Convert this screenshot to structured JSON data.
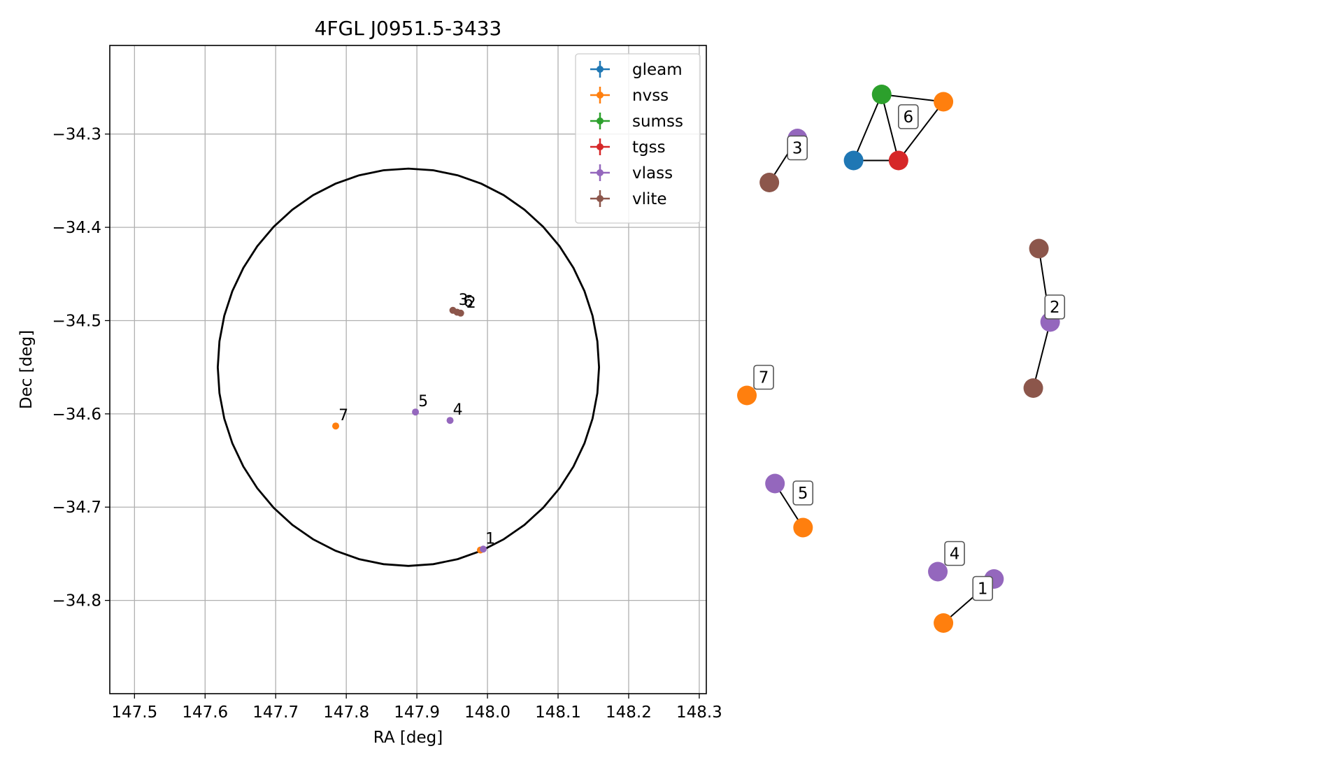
{
  "chart_data": [
    {
      "type": "scatter",
      "title": "4FGL J0951.5-3433",
      "xlabel": "RA [deg]",
      "ylabel": "Dec [deg]",
      "xlim": [
        147.465,
        148.31
      ],
      "ylim": [
        -34.9,
        -34.205
      ],
      "x_ticks": [
        147.5,
        147.6,
        147.7,
        147.8,
        147.9,
        148.0,
        148.1,
        148.2,
        148.3
      ],
      "x_tick_labels": [
        "147.5",
        "147.6",
        "147.7",
        "147.8",
        "147.9",
        "148.0",
        "148.1",
        "148.2",
        "148.3"
      ],
      "y_ticks": [
        -34.3,
        -34.4,
        -34.5,
        -34.6,
        -34.7,
        -34.8
      ],
      "y_tick_labels": [
        "−34.3",
        "−34.4",
        "−34.5",
        "−34.6",
        "−34.7",
        "−34.8"
      ],
      "grid": true,
      "legend_position": "top-right",
      "series": [
        {
          "name": "gleam",
          "color": "#1f77b4",
          "points": []
        },
        {
          "name": "nvss",
          "color": "#ff7f0e",
          "points": [
            [
              147.785,
              -34.613
            ],
            [
              147.99,
              -34.746
            ]
          ]
        },
        {
          "name": "sumss",
          "color": "#2ca02c",
          "points": []
        },
        {
          "name": "tgss",
          "color": "#d62728",
          "points": []
        },
        {
          "name": "vlass",
          "color": "#9467bd",
          "points": [
            [
              147.898,
              -34.598
            ],
            [
              147.947,
              -34.607
            ],
            [
              147.994,
              -34.745
            ]
          ]
        },
        {
          "name": "vlite",
          "color": "#8c564b",
          "points": [
            [
              147.951,
              -34.489
            ],
            [
              147.957,
              -34.491
            ],
            [
              147.962,
              -34.492
            ]
          ]
        }
      ],
      "circle": {
        "center": [
          147.888,
          -34.55
        ],
        "ra_radius": 0.27,
        "dec_radius": 0.213
      },
      "point_labels": [
        {
          "text": "1",
          "x": 147.997,
          "y": -34.739
        },
        {
          "text": "3",
          "x": 147.959,
          "y": -34.483
        },
        {
          "text": "6",
          "x": 147.966,
          "y": -34.485
        },
        {
          "text": "2",
          "x": 147.97,
          "y": -34.486
        },
        {
          "text": "4",
          "x": 147.951,
          "y": -34.601
        },
        {
          "text": "5",
          "x": 147.902,
          "y": -34.592
        },
        {
          "text": "7",
          "x": 147.789,
          "y": -34.607
        }
      ]
    },
    {
      "type": "graph",
      "groups": [
        {
          "label": "6",
          "nodes": [
            {
              "color": "#2ca02c",
              "x": 0.25,
              "y": 0.1
            },
            {
              "color": "#ff7f0e",
              "x": 0.36,
              "y": 0.11
            },
            {
              "color": "#1f77b4",
              "x": 0.2,
              "y": 0.19
            },
            {
              "color": "#d62728",
              "x": 0.28,
              "y": 0.19
            }
          ],
          "edges": [
            [
              0,
              1
            ],
            [
              0,
              2
            ],
            [
              0,
              3
            ],
            [
              1,
              3
            ],
            [
              2,
              3
            ]
          ]
        },
        {
          "label": "3",
          "nodes": [
            {
              "color": "#9467bd",
              "x": 0.1,
              "y": 0.16
            },
            {
              "color": "#8c564b",
              "x": 0.05,
              "y": 0.22
            }
          ],
          "edges": [
            [
              0,
              1
            ]
          ]
        },
        {
          "label": "2",
          "nodes": [
            {
              "color": "#8c564b",
              "x": 0.53,
              "y": 0.31
            },
            {
              "color": "#9467bd",
              "x": 0.55,
              "y": 0.41
            },
            {
              "color": "#8c564b",
              "x": 0.52,
              "y": 0.5
            }
          ],
          "edges": [
            [
              0,
              1
            ],
            [
              1,
              2
            ]
          ]
        },
        {
          "label": "7",
          "nodes": [
            {
              "color": "#ff7f0e",
              "x": 0.01,
              "y": 0.51
            }
          ],
          "edges": []
        },
        {
          "label": "5",
          "nodes": [
            {
              "color": "#9467bd",
              "x": 0.06,
              "y": 0.63
            },
            {
              "color": "#ff7f0e",
              "x": 0.11,
              "y": 0.69
            }
          ],
          "edges": [
            [
              0,
              1
            ]
          ]
        },
        {
          "label": "4",
          "nodes": [
            {
              "color": "#9467bd",
              "x": 0.35,
              "y": 0.75
            }
          ],
          "edges": []
        },
        {
          "label": "1",
          "nodes": [
            {
              "color": "#9467bd",
              "x": 0.45,
              "y": 0.76
            },
            {
              "color": "#ff7f0e",
              "x": 0.36,
              "y": 0.82
            }
          ],
          "edges": [
            [
              0,
              1
            ]
          ]
        }
      ]
    }
  ]
}
